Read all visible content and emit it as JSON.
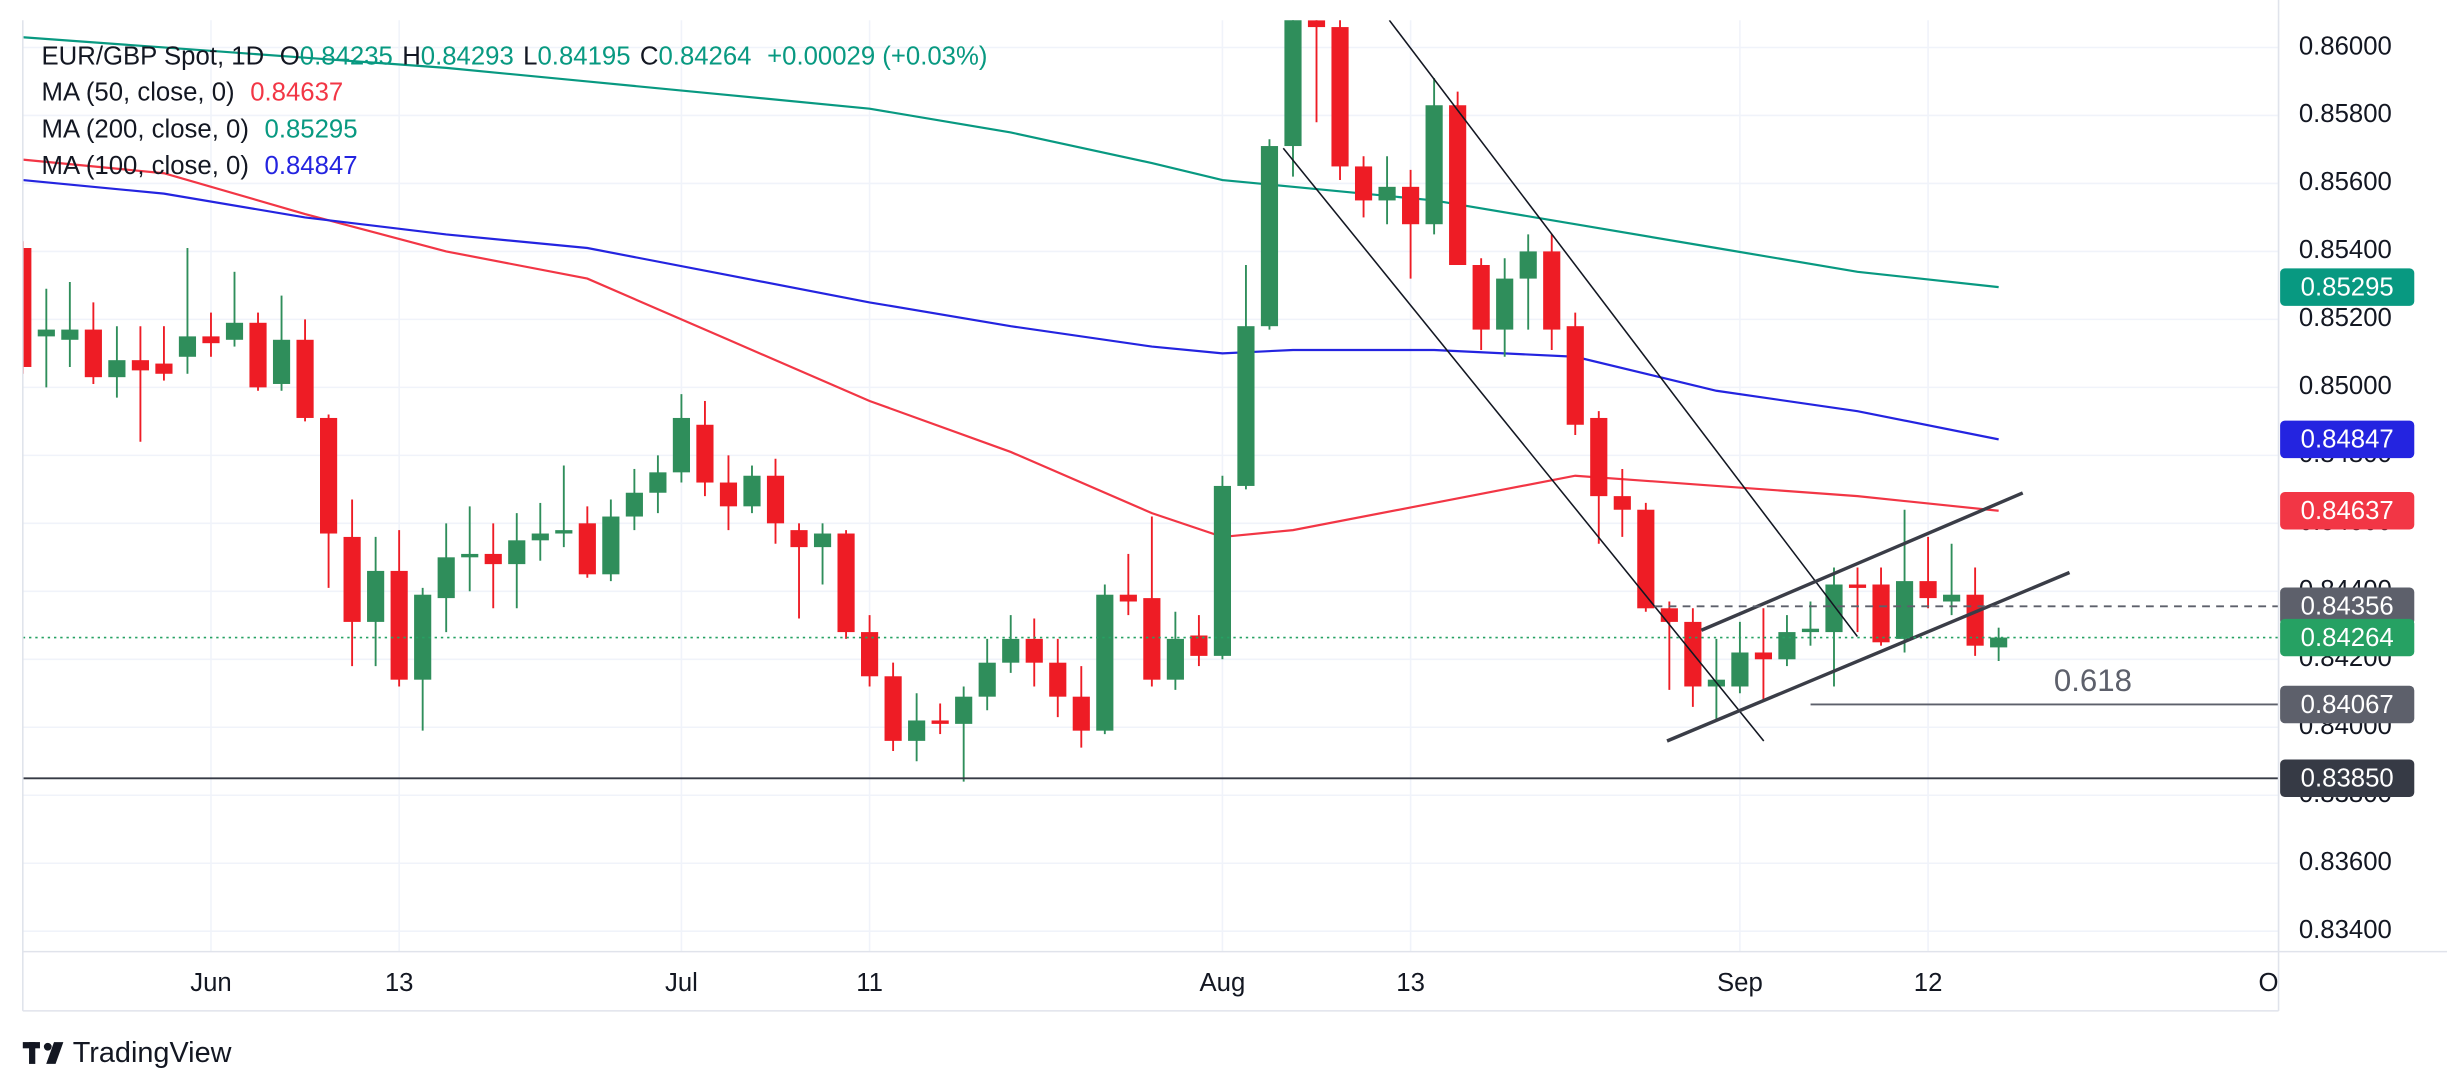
{
  "chart_data": {
    "type": "candlestick",
    "title": "EUR/GBP Spot, 1D",
    "ohlc_labels": [
      "O",
      "H",
      "L",
      "C"
    ],
    "change": "+0.00029 (+0.03%)",
    "up_color": "#2f8e5b",
    "down_color": "#ee1c25",
    "candles": {
      "open": [
        0.8541,
        0.8515,
        0.8514,
        0.8517,
        0.8503,
        0.8508,
        0.8507,
        0.8509,
        0.8515,
        0.8514,
        0.8519,
        0.8501,
        0.8514,
        0.8491,
        0.8456,
        0.8431,
        0.8446,
        0.8414,
        0.8438,
        0.845,
        0.8451,
        0.8448,
        0.8455,
        0.8457,
        0.846,
        0.8445,
        0.8462,
        0.8469,
        0.8475,
        0.8489,
        0.8472,
        0.8465,
        0.8474,
        0.8458,
        0.8453,
        0.8457,
        0.8428,
        0.8415,
        0.8396,
        0.8402,
        0.8401,
        0.8409,
        0.8419,
        0.8426,
        0.8419,
        0.8409,
        0.8399,
        0.8439,
        0.8438,
        0.8414,
        0.8427,
        0.8421,
        0.8471,
        0.8518,
        0.8571,
        0.8608,
        0.8606,
        0.8565,
        0.8555,
        0.8559,
        0.8548,
        0.8583,
        0.8536,
        0.8517,
        0.8532,
        0.854,
        0.8518,
        0.8491,
        0.8468,
        0.8464,
        0.8435,
        0.8431,
        0.8412,
        0.8412,
        0.8422,
        0.842,
        0.8428,
        0.8428,
        0.8442,
        0.8442,
        0.8426,
        0.8443,
        0.8437,
        0.8439,
        0.84235
      ],
      "high": [
        0.8543,
        0.8529,
        0.8531,
        0.8525,
        0.8518,
        0.8518,
        0.8518,
        0.8541,
        0.8522,
        0.8534,
        0.8522,
        0.8527,
        0.852,
        0.8492,
        0.8467,
        0.8456,
        0.8458,
        0.8441,
        0.846,
        0.8465,
        0.846,
        0.8463,
        0.8466,
        0.8477,
        0.8465,
        0.8467,
        0.8476,
        0.848,
        0.8498,
        0.8496,
        0.848,
        0.8477,
        0.8479,
        0.846,
        0.846,
        0.8458,
        0.8433,
        0.8419,
        0.841,
        0.8407,
        0.8412,
        0.8426,
        0.8433,
        0.8432,
        0.8426,
        0.8418,
        0.8442,
        0.8451,
        0.8462,
        0.8434,
        0.8433,
        0.8474,
        0.8536,
        0.8573,
        0.8614,
        0.8611,
        0.8609,
        0.8568,
        0.8568,
        0.8564,
        0.8591,
        0.8587,
        0.8538,
        0.8538,
        0.8545,
        0.8545,
        0.8522,
        0.8493,
        0.8476,
        0.8466,
        0.8437,
        0.8435,
        0.8426,
        0.8431,
        0.8435,
        0.8433,
        0.8437,
        0.8447,
        0.8447,
        0.8447,
        0.8464,
        0.8456,
        0.8454,
        0.8447,
        0.84293
      ],
      "low": [
        0.8504,
        0.85,
        0.8506,
        0.8501,
        0.8497,
        0.8484,
        0.8502,
        0.8504,
        0.8509,
        0.8512,
        0.8499,
        0.8499,
        0.849,
        0.8441,
        0.8418,
        0.8418,
        0.8412,
        0.8399,
        0.8428,
        0.844,
        0.8435,
        0.8435,
        0.8449,
        0.8453,
        0.8444,
        0.8443,
        0.8458,
        0.8463,
        0.8472,
        0.8468,
        0.8458,
        0.8463,
        0.8454,
        0.8432,
        0.8442,
        0.8426,
        0.8412,
        0.8393,
        0.839,
        0.8398,
        0.8384,
        0.8405,
        0.8416,
        0.8412,
        0.8403,
        0.8394,
        0.8398,
        0.8433,
        0.8412,
        0.8411,
        0.8418,
        0.842,
        0.847,
        0.8517,
        0.8562,
        0.8578,
        0.8561,
        0.855,
        0.8548,
        0.8532,
        0.8545,
        0.8536,
        0.8511,
        0.8509,
        0.8517,
        0.8511,
        0.8486,
        0.8454,
        0.8456,
        0.8434,
        0.8411,
        0.8406,
        0.8402,
        0.841,
        0.8408,
        0.8418,
        0.8424,
        0.8412,
        0.8428,
        0.8424,
        0.8422,
        0.8435,
        0.8433,
        0.8421,
        0.84195
      ],
      "close": [
        0.8506,
        0.8517,
        0.8517,
        0.8503,
        0.8508,
        0.8505,
        0.8504,
        0.8515,
        0.8513,
        0.8519,
        0.85,
        0.8514,
        0.8491,
        0.8457,
        0.8431,
        0.8446,
        0.8414,
        0.8439,
        0.845,
        0.8451,
        0.8448,
        0.8455,
        0.8457,
        0.8458,
        0.8445,
        0.8462,
        0.8469,
        0.8475,
        0.8491,
        0.8472,
        0.8465,
        0.8474,
        0.846,
        0.8453,
        0.8457,
        0.8428,
        0.8415,
        0.8396,
        0.8402,
        0.8401,
        0.8409,
        0.8419,
        0.8426,
        0.8419,
        0.8409,
        0.8399,
        0.8439,
        0.8437,
        0.8414,
        0.8426,
        0.8421,
        0.8471,
        0.8518,
        0.8571,
        0.8609,
        0.8606,
        0.8565,
        0.8555,
        0.8559,
        0.8548,
        0.8583,
        0.8536,
        0.8517,
        0.8532,
        0.854,
        0.8517,
        0.8489,
        0.8468,
        0.8464,
        0.8435,
        0.8431,
        0.8412,
        0.8414,
        0.8422,
        0.842,
        0.8428,
        0.8429,
        0.8442,
        0.8441,
        0.8425,
        0.8443,
        0.8438,
        0.8439,
        0.8424,
        0.84264
      ]
    },
    "ma": [
      {
        "name": "MA (50, close, 0)",
        "color": "#f23645",
        "x": [
          0,
          6,
          12,
          18,
          24,
          30,
          36,
          42,
          48,
          51,
          54,
          60,
          66,
          72,
          78,
          84
        ],
        "values": [
          0.8567,
          0.8563,
          0.8551,
          0.854,
          0.8532,
          0.8514,
          0.8496,
          0.8481,
          0.8463,
          0.8456,
          0.8458,
          0.8466,
          0.8474,
          0.8471,
          0.8468,
          0.84637
        ]
      },
      {
        "name": "MA (200, close, 0)",
        "color": "#089981",
        "x": [
          0,
          6,
          12,
          18,
          24,
          30,
          36,
          42,
          48,
          51,
          54,
          60,
          66,
          72,
          78,
          84
        ],
        "values": [
          0.8603,
          0.86,
          0.8597,
          0.8594,
          0.859,
          0.8586,
          0.8582,
          0.8575,
          0.8566,
          0.8561,
          0.8559,
          0.8555,
          0.8548,
          0.8541,
          0.8534,
          0.85295
        ]
      },
      {
        "name": "MA (100, close, 0)",
        "color": "#2424e0",
        "x": [
          0,
          6,
          12,
          18,
          24,
          30,
          36,
          42,
          48,
          51,
          54,
          60,
          66,
          72,
          78,
          84
        ],
        "values": [
          0.8561,
          0.8557,
          0.855,
          0.8545,
          0.8541,
          0.8533,
          0.8525,
          0.8518,
          0.8512,
          0.851,
          0.8511,
          0.8511,
          0.8509,
          0.8499,
          0.8493,
          0.84847
        ]
      }
    ],
    "price_lines": [
      {
        "value": 0.84356,
        "label": "0.84356",
        "color": "#5d606b",
        "style": "dashed"
      },
      {
        "value": 0.84067,
        "label": "0.84067",
        "color": "#5d606b",
        "style": "solid"
      },
      {
        "value": 0.8385,
        "label": "0.83850",
        "color": "#363a45",
        "style": "solid"
      }
    ],
    "fib_label": "0.618",
    "current_price_color": "#26a163",
    "xlim": [
      0,
      95.9
    ],
    "xticks": [
      {
        "value": 8,
        "label": "Jun"
      },
      {
        "value": 16,
        "label": "13"
      },
      {
        "value": 28,
        "label": "Jul"
      },
      {
        "value": 36,
        "label": "11"
      },
      {
        "value": 51,
        "label": "Aug"
      },
      {
        "value": 59,
        "label": "13"
      },
      {
        "value": 73,
        "label": "Sep"
      },
      {
        "value": 81,
        "label": "12"
      },
      {
        "value": 95.9,
        "label": "Oct"
      }
    ],
    "ylim": [
      0.8334,
      0.8608
    ],
    "yticks": [
      {
        "value": 0.86,
        "label": "0.86000"
      },
      {
        "value": 0.858,
        "label": "0.85800"
      },
      {
        "value": 0.856,
        "label": "0.85600"
      },
      {
        "value": 0.854,
        "label": "0.85400"
      },
      {
        "value": 0.852,
        "label": "0.85200"
      },
      {
        "value": 0.85,
        "label": "0.85000"
      },
      {
        "value": 0.848,
        "label": "0.84800"
      },
      {
        "value": 0.846,
        "label": "0.84600"
      },
      {
        "value": 0.844,
        "label": "0.84400"
      },
      {
        "value": 0.842,
        "label": "0.84200"
      },
      {
        "value": 0.84,
        "label": "0.84000"
      },
      {
        "value": 0.838,
        "label": "0.83800"
      },
      {
        "value": 0.836,
        "label": "0.83600"
      },
      {
        "value": 0.834,
        "label": "0.83400"
      }
    ],
    "grid": true,
    "brand": "TradingView"
  }
}
